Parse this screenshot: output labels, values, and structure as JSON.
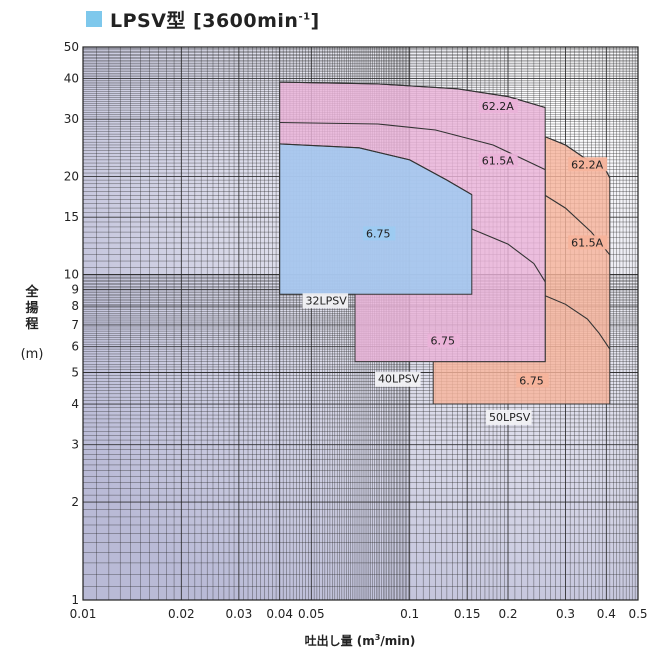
{
  "title": {
    "text": "LPSV型 [3600min",
    "sup": "-1",
    "end": "]",
    "marker_color": "#7ec8ec"
  },
  "chart_data": {
    "type": "area",
    "xlabel_main": "吐出し量 (m",
    "xlabel_sup": "3",
    "xlabel_end": "/min)",
    "ylabel_chars": [
      "全",
      "揚",
      "程"
    ],
    "ylabel_unit": "(m)",
    "x_scale": "log",
    "y_scale": "log",
    "xlim": [
      0.01,
      0.5
    ],
    "ylim": [
      1,
      50
    ],
    "grid": true,
    "x_ticks": [
      {
        "v": 0.01,
        "t": "0.01"
      },
      {
        "v": 0.02,
        "t": "0.02"
      },
      {
        "v": 0.03,
        "t": "0.03"
      },
      {
        "v": 0.04,
        "t": "0.04"
      },
      {
        "v": 0.05,
        "t": "0.05"
      },
      {
        "v": 0.1,
        "t": "0.1"
      },
      {
        "v": 0.15,
        "t": "0.15"
      },
      {
        "v": 0.2,
        "t": "0.2"
      },
      {
        "v": 0.3,
        "t": "0.3"
      },
      {
        "v": 0.4,
        "t": "0.4"
      },
      {
        "v": 0.5,
        "t": "0.5"
      }
    ],
    "y_ticks": [
      {
        "v": 1,
        "t": "1"
      },
      {
        "v": 2,
        "t": "2"
      },
      {
        "v": 3,
        "t": "3"
      },
      {
        "v": 4,
        "t": "4"
      },
      {
        "v": 5,
        "t": "5"
      },
      {
        "v": 6,
        "t": "6"
      },
      {
        "v": 7,
        "t": "7"
      },
      {
        "v": 8,
        "t": "8"
      },
      {
        "v": 9,
        "t": "9"
      },
      {
        "v": 10,
        "t": "10"
      },
      {
        "v": 15,
        "t": "15"
      },
      {
        "v": 20,
        "t": "20"
      },
      {
        "v": 30,
        "t": "30"
      },
      {
        "v": 40,
        "t": "40"
      },
      {
        "v": 50,
        "t": "50"
      }
    ],
    "regions": [
      {
        "name": "50LPSV",
        "fill": "#f6b39b",
        "label_at": [
          0.175,
          3.55
        ],
        "polygon": [
          [
            0.118,
            4.0
          ],
          [
            0.118,
            5.4
          ],
          [
            0.26,
            5.4
          ],
          [
            0.26,
            26.5
          ],
          [
            0.3,
            25.0
          ],
          [
            0.35,
            22.5
          ],
          [
            0.4,
            20.8
          ],
          [
            0.41,
            19.8
          ],
          [
            0.41,
            4.0
          ]
        ],
        "curves": [
          {
            "label": "62.2A",
            "label_at": [
              0.31,
              21.2
            ],
            "points": [
              [
                0.26,
                26.5
              ],
              [
                0.3,
                25.0
              ],
              [
                0.35,
                22.5
              ],
              [
                0.4,
                20.8
              ],
              [
                0.41,
                19.8
              ]
            ]
          },
          {
            "label": "61.5A",
            "label_at": [
              0.31,
              12.2
            ],
            "points": [
              [
                0.26,
                17.5
              ],
              [
                0.3,
                16.0
              ],
              [
                0.36,
                13.5
              ],
              [
                0.41,
                11.5
              ]
            ]
          },
          {
            "label": "6.75",
            "label_at": [
              0.215,
              4.6
            ],
            "points": [
              [
                0.26,
                8.6
              ],
              [
                0.3,
                8.1
              ],
              [
                0.35,
                7.3
              ],
              [
                0.38,
                6.6
              ],
              [
                0.41,
                5.9
              ]
            ]
          }
        ]
      },
      {
        "name": "40LPSV",
        "fill": "#eab2d8",
        "label_at": [
          0.08,
          4.65
        ],
        "polygon": [
          [
            0.068,
            5.4
          ],
          [
            0.068,
            8.7
          ],
          [
            0.04,
            8.7
          ],
          [
            0.04,
            39.0
          ],
          [
            0.08,
            38.5
          ],
          [
            0.14,
            37.2
          ],
          [
            0.2,
            35.2
          ],
          [
            0.26,
            32.6
          ],
          [
            0.26,
            5.4
          ]
        ],
        "curves": [
          {
            "label": "62.2A",
            "label_at": [
              0.165,
              32.0
            ],
            "points": [
              [
                0.04,
                39.0
              ],
              [
                0.08,
                38.5
              ],
              [
                0.14,
                37.2
              ],
              [
                0.2,
                35.2
              ],
              [
                0.26,
                32.6
              ]
            ]
          },
          {
            "label": "61.5A",
            "label_at": [
              0.165,
              21.8
            ],
            "points": [
              [
                0.04,
                29.3
              ],
              [
                0.08,
                29.0
              ],
              [
                0.12,
                27.8
              ],
              [
                0.18,
                25.0
              ],
              [
                0.26,
                21.0
              ]
            ]
          },
          {
            "label": "6.75",
            "label_at": [
              0.115,
              6.1
            ],
            "points": [
              [
                0.155,
                13.8
              ],
              [
                0.2,
                12.4
              ],
              [
                0.24,
                10.8
              ],
              [
                0.26,
                9.5
              ]
            ]
          }
        ]
      },
      {
        "name": "32LPSV",
        "fill": "#9ccbf1",
        "label_at": [
          0.048,
          8.1
        ],
        "polygon": [
          [
            0.04,
            8.7
          ],
          [
            0.04,
            25.2
          ],
          [
            0.07,
            24.5
          ],
          [
            0.1,
            22.5
          ],
          [
            0.13,
            19.5
          ],
          [
            0.155,
            17.6
          ],
          [
            0.155,
            8.7
          ]
        ],
        "curves": [
          {
            "label": "6.75",
            "label_at": [
              0.073,
              13.0
            ],
            "points": [
              [
                0.04,
                25.2
              ],
              [
                0.07,
                24.5
              ],
              [
                0.1,
                22.5
              ],
              [
                0.13,
                19.5
              ],
              [
                0.155,
                17.6
              ]
            ]
          }
        ]
      }
    ]
  }
}
